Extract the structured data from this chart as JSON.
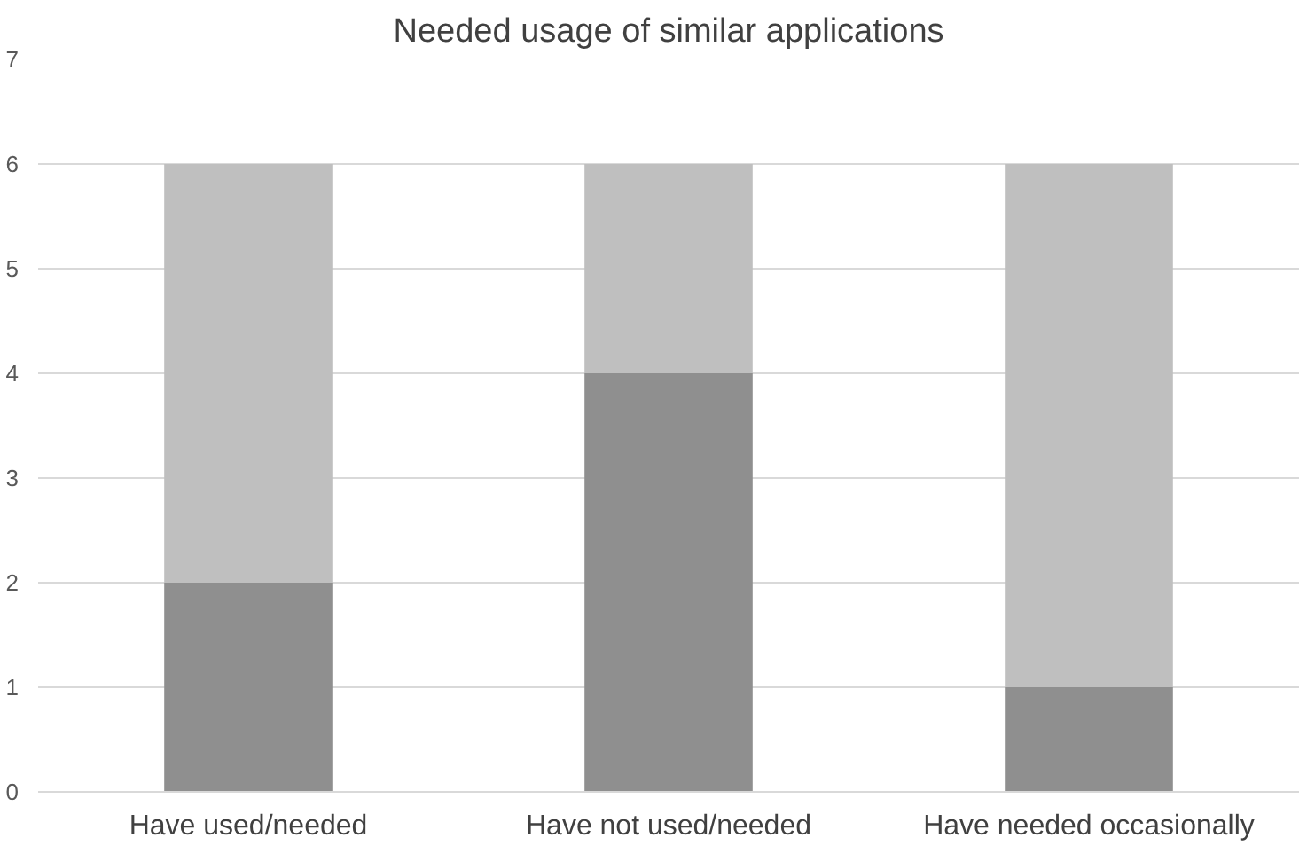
{
  "chart_data": {
    "type": "bar",
    "title": "Needed usage of similar applications",
    "categories": [
      "Have used/needed",
      "Have not used/needed",
      "Have needed occasionally"
    ],
    "stacked": true,
    "series": [
      {
        "color": "#8f8f8f",
        "values": [
          2,
          4,
          1
        ]
      },
      {
        "color": "#bfbfbf",
        "values": [
          4,
          2,
          5
        ]
      }
    ],
    "ylim": [
      0,
      7
    ],
    "yticks": [
      0,
      1,
      2,
      3,
      4,
      5,
      6,
      7
    ],
    "grid": "y"
  }
}
